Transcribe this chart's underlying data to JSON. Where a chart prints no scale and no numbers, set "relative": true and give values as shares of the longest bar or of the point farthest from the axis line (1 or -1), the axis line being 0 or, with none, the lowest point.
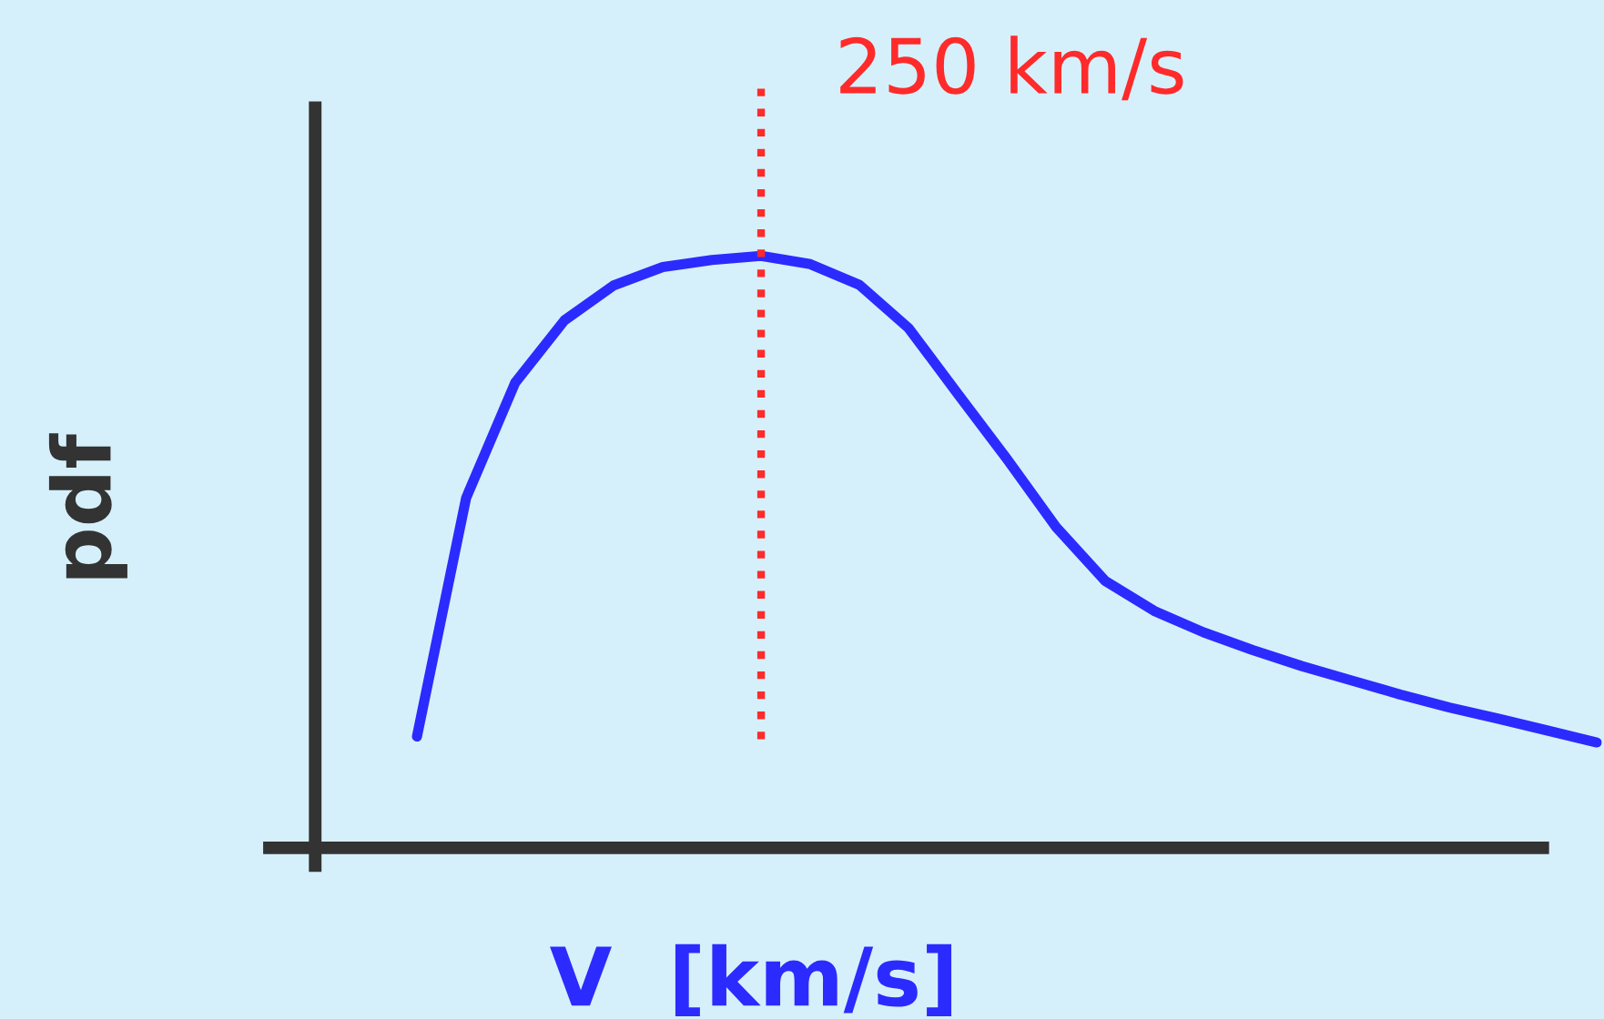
{
  "chart_data": {
    "type": "line",
    "relative": true,
    "xlabel": "V  [km/s]",
    "ylabel": "pdf",
    "categories": [
      null,
      null,
      null,
      null,
      null,
      null,
      null,
      null,
      null,
      null,
      null,
      null,
      null,
      null,
      null,
      null,
      null,
      null,
      null,
      null,
      null,
      null,
      null,
      null,
      null
    ],
    "series": [
      {
        "color": "#2b2bff",
        "values": [
          0.188,
          0.591,
          0.786,
          0.891,
          0.95,
          0.981,
          0.993,
          1,
          0.986,
          0.951,
          0.878,
          0.767,
          0.657,
          0.542,
          0.451,
          0.4,
          0.364,
          0.334,
          0.307,
          0.283,
          0.259,
          0.237,
          0.218,
          0.198,
          0.178
        ]
      }
    ],
    "annotations": [
      "250 km/s"
    ]
  }
}
